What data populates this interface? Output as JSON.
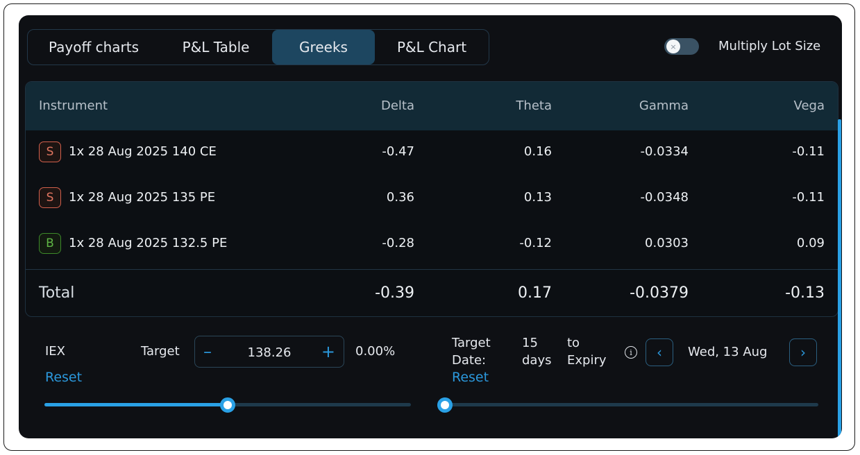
{
  "tabs": [
    {
      "label": "Payoff charts"
    },
    {
      "label": "P&L Table"
    },
    {
      "label": "Greeks",
      "active": true
    },
    {
      "label": "P&L Chart"
    }
  ],
  "multiply_lot_size": {
    "label": "Multiply Lot Size",
    "on": false,
    "knob_glyph": "×"
  },
  "table": {
    "headers": {
      "instrument": "Instrument",
      "delta": "Delta",
      "theta": "Theta",
      "gamma": "Gamma",
      "vega": "Vega"
    },
    "rows": [
      {
        "side": "S",
        "instrument": "1x 28 Aug 2025 140 CE",
        "delta": "-0.47",
        "theta": "0.16",
        "gamma": "-0.0334",
        "vega": "-0.11"
      },
      {
        "side": "S",
        "instrument": "1x 28 Aug 2025 135 PE",
        "delta": "0.36",
        "theta": "0.13",
        "gamma": "-0.0348",
        "vega": "-0.11"
      },
      {
        "side": "B",
        "instrument": "1x 28 Aug 2025 132.5 PE",
        "delta": "-0.28",
        "theta": "-0.12",
        "gamma": "0.0303",
        "vega": "0.09"
      }
    ],
    "total": {
      "label": "Total",
      "delta": "-0.39",
      "theta": "0.17",
      "gamma": "-0.0379",
      "vega": "-0.13"
    }
  },
  "target": {
    "symbol": "IEX",
    "label": "Target",
    "value": "138.26",
    "minus": "–",
    "plus": "+",
    "change": "0.00%",
    "reset": "Reset",
    "slider_fraction": 0.5
  },
  "target_date": {
    "label_line1": "Target",
    "label_line2": "Date:",
    "days_line1": "15",
    "days_line2": "days",
    "to_line1": "to",
    "to_line2": "Expiry",
    "info_glyph": "i",
    "date": "Wed, 13 Aug",
    "prev": "‹",
    "next": "›",
    "reset": "Reset",
    "slider_fraction": 0.0
  },
  "colors": {
    "accent": "#2aa1e6",
    "sell": "#d3604c",
    "buy": "#3d8a2a",
    "panel_bg": "#0e1014",
    "header_bg": "#122a36"
  }
}
